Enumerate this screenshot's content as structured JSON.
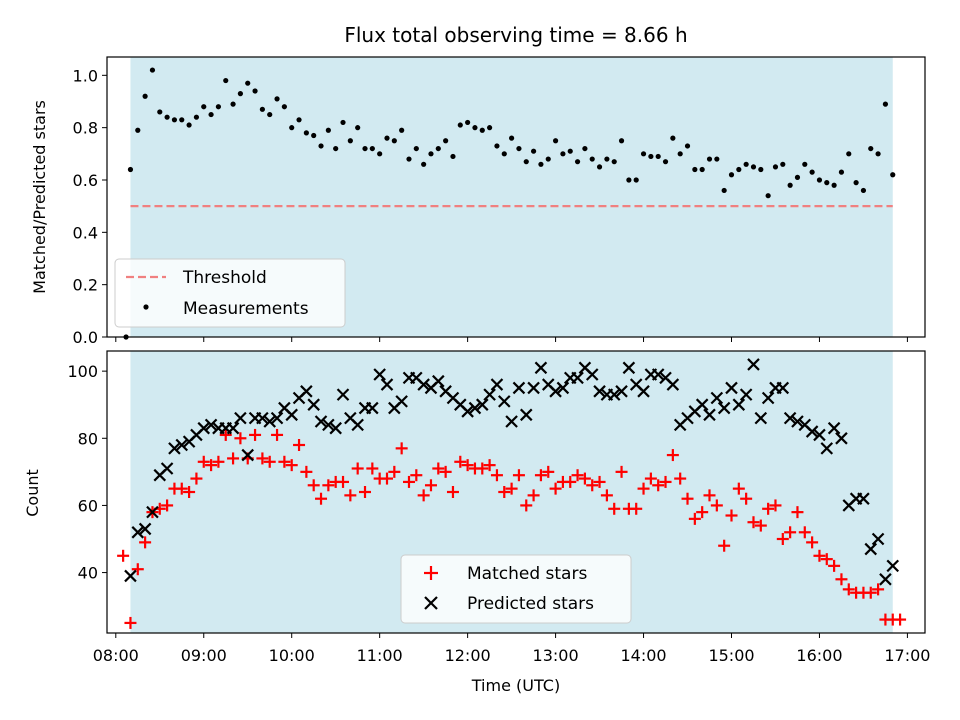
{
  "figure": {
    "title": "Flux total observing time = 8.66 h",
    "xlabel": "Time (UTC)"
  },
  "colors": {
    "observing_shade": "#add8e6",
    "threshold": "#f08080",
    "measurements": "#000000",
    "matched": "#ff0000",
    "predicted": "#000000"
  },
  "chart_data": [
    {
      "type": "scatter",
      "panel": "top",
      "ylabel": "Matched/Predicted stars",
      "xlim": [
        "07:54",
        "17:12"
      ],
      "ylim": [
        0,
        1.07
      ],
      "xticks": [
        "08:00",
        "09:00",
        "10:00",
        "11:00",
        "12:00",
        "13:00",
        "14:00",
        "15:00",
        "16:00",
        "17:00"
      ],
      "yticks": [
        "0.0",
        "0.2",
        "0.4",
        "0.6",
        "0.8",
        "1.0"
      ],
      "observing_window": [
        "08:10",
        "16:50"
      ],
      "threshold": {
        "name": "Threshold",
        "value": 0.5,
        "x_range": [
          "08:10",
          "16:50"
        ],
        "style": "dashed"
      },
      "legend": {
        "placement": "lower-left",
        "entries": [
          "Threshold",
          "Measurements"
        ]
      },
      "series": [
        {
          "name": "Measurements",
          "marker": "dot",
          "x": [
            "08:07",
            "08:10",
            "08:15",
            "08:20",
            "08:25",
            "08:30",
            "08:35",
            "08:40",
            "08:45",
            "08:50",
            "08:55",
            "09:00",
            "09:05",
            "09:10",
            "09:15",
            "09:20",
            "09:25",
            "09:30",
            "09:35",
            "09:40",
            "09:45",
            "09:50",
            "09:55",
            "10:00",
            "10:05",
            "10:10",
            "10:15",
            "10:20",
            "10:25",
            "10:30",
            "10:35",
            "10:40",
            "10:45",
            "10:50",
            "10:55",
            "11:00",
            "11:05",
            "11:10",
            "11:15",
            "11:20",
            "11:25",
            "11:30",
            "11:35",
            "11:40",
            "11:45",
            "11:50",
            "11:55",
            "12:00",
            "12:05",
            "12:10",
            "12:15",
            "12:20",
            "12:25",
            "12:30",
            "12:35",
            "12:40",
            "12:45",
            "12:50",
            "12:55",
            "13:00",
            "13:05",
            "13:10",
            "13:15",
            "13:20",
            "13:25",
            "13:30",
            "13:35",
            "13:40",
            "13:45",
            "13:50",
            "13:55",
            "14:00",
            "14:05",
            "14:10",
            "14:15",
            "14:20",
            "14:25",
            "14:30",
            "14:35",
            "14:40",
            "14:45",
            "14:50",
            "14:55",
            "15:00",
            "15:05",
            "15:10",
            "15:15",
            "15:20",
            "15:25",
            "15:30",
            "15:35",
            "15:40",
            "15:45",
            "15:50",
            "15:55",
            "16:00",
            "16:05",
            "16:10",
            "16:15",
            "16:20",
            "16:25",
            "16:30",
            "16:35",
            "16:40",
            "16:45",
            "16:50"
          ],
          "y": [
            0.0,
            0.64,
            0.79,
            0.92,
            1.02,
            0.86,
            0.84,
            0.83,
            0.83,
            0.81,
            0.84,
            0.88,
            0.85,
            0.88,
            0.98,
            0.89,
            0.93,
            0.97,
            0.94,
            0.87,
            0.85,
            0.91,
            0.88,
            0.8,
            0.83,
            0.78,
            0.77,
            0.73,
            0.79,
            0.72,
            0.82,
            0.75,
            0.8,
            0.72,
            0.72,
            0.7,
            0.76,
            0.75,
            0.79,
            0.68,
            0.72,
            0.66,
            0.7,
            0.72,
            0.75,
            0.69,
            0.81,
            0.82,
            0.8,
            0.79,
            0.8,
            0.73,
            0.7,
            0.76,
            0.72,
            0.67,
            0.71,
            0.66,
            0.68,
            0.75,
            0.7,
            0.71,
            0.67,
            0.72,
            0.68,
            0.65,
            0.68,
            0.67,
            0.75,
            0.6,
            0.6,
            0.7,
            0.69,
            0.69,
            0.67,
            0.76,
            0.7,
            0.73,
            0.64,
            0.64,
            0.68,
            0.68,
            0.56,
            0.62,
            0.64,
            0.66,
            0.65,
            0.64,
            0.54,
            0.65,
            0.66,
            0.58,
            0.61,
            0.66,
            0.63,
            0.6,
            0.59,
            0.58,
            0.63,
            0.7,
            0.59,
            0.56,
            0.72,
            0.7,
            0.89,
            0.62
          ]
        }
      ]
    },
    {
      "type": "scatter",
      "panel": "bottom",
      "ylabel": "Count",
      "xlim": [
        "07:54",
        "17:12"
      ],
      "ylim": [
        22,
        106
      ],
      "xticks": [
        "08:00",
        "09:00",
        "10:00",
        "11:00",
        "12:00",
        "13:00",
        "14:00",
        "15:00",
        "16:00",
        "17:00"
      ],
      "yticks": [
        "40",
        "60",
        "80",
        "100"
      ],
      "observing_window": [
        "08:10",
        "16:50"
      ],
      "legend": {
        "placement": "lower-center",
        "entries": [
          "Matched stars",
          "Predicted stars"
        ]
      },
      "series": [
        {
          "name": "Matched stars",
          "marker": "plus",
          "x": [
            "08:05",
            "08:10",
            "08:15",
            "08:20",
            "08:25",
            "08:30",
            "08:35",
            "08:40",
            "08:45",
            "08:50",
            "08:55",
            "09:00",
            "09:05",
            "09:10",
            "09:15",
            "09:20",
            "09:25",
            "09:30",
            "09:35",
            "09:40",
            "09:45",
            "09:50",
            "09:55",
            "10:00",
            "10:05",
            "10:10",
            "10:15",
            "10:20",
            "10:25",
            "10:30",
            "10:35",
            "10:40",
            "10:45",
            "10:50",
            "10:55",
            "11:00",
            "11:05",
            "11:10",
            "11:15",
            "11:20",
            "11:25",
            "11:30",
            "11:35",
            "11:40",
            "11:45",
            "11:50",
            "11:55",
            "12:00",
            "12:05",
            "12:10",
            "12:15",
            "12:20",
            "12:25",
            "12:30",
            "12:35",
            "12:40",
            "12:45",
            "12:50",
            "12:55",
            "13:00",
            "13:05",
            "13:10",
            "13:15",
            "13:20",
            "13:25",
            "13:30",
            "13:35",
            "13:40",
            "13:45",
            "13:50",
            "13:55",
            "14:00",
            "14:05",
            "14:10",
            "14:15",
            "14:20",
            "14:25",
            "14:30",
            "14:35",
            "14:40",
            "14:45",
            "14:50",
            "14:55",
            "15:00",
            "15:05",
            "15:10",
            "15:15",
            "15:20",
            "15:25",
            "15:30",
            "15:35",
            "15:40",
            "15:45",
            "15:50",
            "15:55",
            "16:00",
            "16:05",
            "16:10",
            "16:15",
            "16:20",
            "16:25",
            "16:30",
            "16:35",
            "16:40",
            "16:45",
            "16:50",
            "16:55"
          ],
          "y": [
            45,
            25,
            41,
            49,
            58,
            59,
            60,
            65,
            65,
            64,
            68,
            73,
            72,
            73,
            81,
            74,
            80,
            74,
            81,
            74,
            73,
            81,
            73,
            72,
            78,
            70,
            66,
            62,
            66,
            67,
            67,
            63,
            71,
            64,
            71,
            68,
            68,
            70,
            77,
            67,
            69,
            63,
            66,
            71,
            70,
            64,
            73,
            72,
            71,
            71,
            72,
            69,
            64,
            65,
            69,
            60,
            63,
            69,
            70,
            65,
            67,
            67,
            69,
            68,
            66,
            67,
            63,
            59,
            70,
            59,
            59,
            65,
            68,
            66,
            67,
            75,
            68,
            62,
            56,
            58,
            63,
            60,
            48,
            57,
            65,
            62,
            55,
            54,
            59,
            60,
            50,
            52,
            58,
            52,
            49,
            45,
            44,
            42,
            38,
            35,
            34,
            34,
            34,
            35,
            26,
            26,
            26
          ]
        },
        {
          "name": "Predicted stars",
          "marker": "x",
          "x": [
            "08:10",
            "08:15",
            "08:20",
            "08:25",
            "08:30",
            "08:35",
            "08:40",
            "08:45",
            "08:50",
            "08:55",
            "09:00",
            "09:05",
            "09:10",
            "09:15",
            "09:20",
            "09:25",
            "09:30",
            "09:35",
            "09:40",
            "09:45",
            "09:50",
            "09:55",
            "10:00",
            "10:05",
            "10:10",
            "10:15",
            "10:20",
            "10:25",
            "10:30",
            "10:35",
            "10:40",
            "10:45",
            "10:50",
            "10:55",
            "11:00",
            "11:05",
            "11:10",
            "11:15",
            "11:20",
            "11:25",
            "11:30",
            "11:35",
            "11:40",
            "11:45",
            "11:50",
            "11:55",
            "12:00",
            "12:05",
            "12:10",
            "12:15",
            "12:20",
            "12:25",
            "12:30",
            "12:35",
            "12:40",
            "12:45",
            "12:50",
            "12:55",
            "13:00",
            "13:05",
            "13:10",
            "13:15",
            "13:20",
            "13:25",
            "13:30",
            "13:35",
            "13:40",
            "13:45",
            "13:50",
            "13:55",
            "14:00",
            "14:05",
            "14:10",
            "14:15",
            "14:20",
            "14:25",
            "14:30",
            "14:35",
            "14:40",
            "14:45",
            "14:50",
            "14:55",
            "15:00",
            "15:05",
            "15:10",
            "15:15",
            "15:20",
            "15:25",
            "15:30",
            "15:35",
            "15:40",
            "15:45",
            "15:50",
            "15:55",
            "16:00",
            "16:05",
            "16:10",
            "16:15",
            "16:20",
            "16:25",
            "16:30",
            "16:35",
            "16:40",
            "16:45",
            "16:50"
          ],
          "y": [
            39,
            52,
            53,
            58,
            69,
            71,
            77,
            78,
            79,
            81,
            83,
            84,
            83,
            83,
            83,
            86,
            75,
            86,
            86,
            85,
            86,
            89,
            87,
            92,
            94,
            90,
            85,
            84,
            83,
            93,
            86,
            84,
            89,
            89,
            99,
            96,
            89,
            91,
            98,
            98,
            96,
            95,
            97,
            94,
            92,
            90,
            88,
            89,
            90,
            93,
            96,
            91,
            85,
            95,
            87,
            95,
            101,
            96,
            94,
            95,
            98,
            98,
            101,
            99,
            94,
            93,
            93,
            94,
            101,
            96,
            94,
            99,
            99,
            98,
            96,
            84,
            86,
            88,
            90,
            87,
            92,
            89,
            95,
            90,
            93,
            102,
            86,
            92,
            95,
            95,
            86,
            85,
            84,
            82,
            81,
            77,
            83,
            80,
            60,
            62,
            62,
            47,
            50,
            38,
            42
          ]
        }
      ]
    }
  ]
}
